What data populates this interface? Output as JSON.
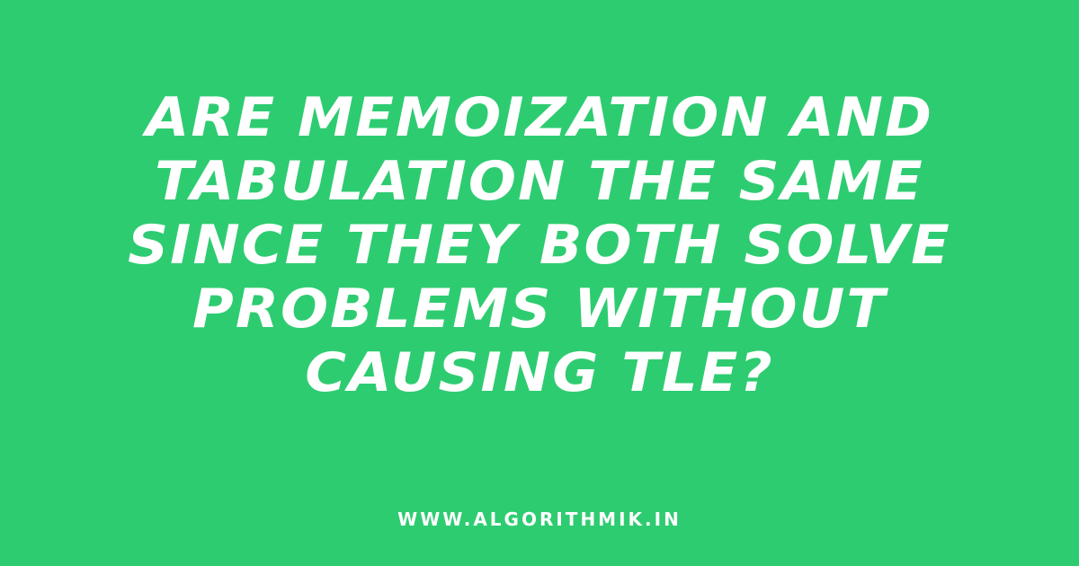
{
  "headline": {
    "lines": [
      "ARE MEMOIZATION AND",
      "TABULATION THE SAME",
      "SINCE THEY BOTH SOLVE",
      "PROBLEMS WITHOUT",
      "CAUSING TLE?"
    ]
  },
  "footer": {
    "url": "WWW.ALGORITHMIK.IN"
  },
  "colors": {
    "background": "#2ecc71",
    "text": "#ffffff"
  }
}
